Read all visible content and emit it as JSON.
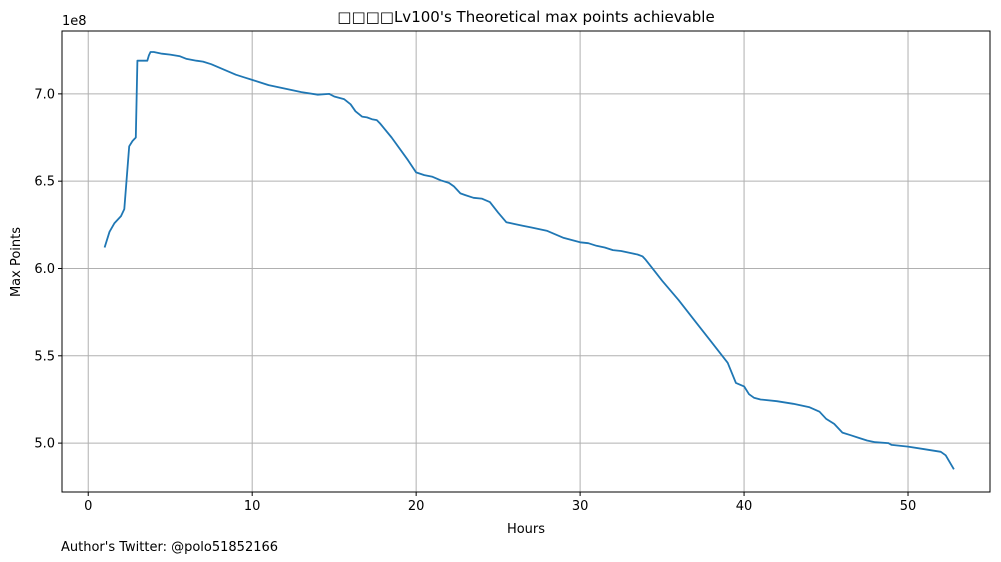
{
  "chart_data": {
    "type": "line",
    "title": "□□□□Lv100's Theoretical max points achievable",
    "xlabel": "Hours",
    "ylabel": "Max Points",
    "y_offset_label": "1e8",
    "y_scale": 100000000,
    "xlim": [
      -1.6,
      55.0
    ],
    "ylim": [
      4.72,
      7.36
    ],
    "x_ticks": [
      0,
      10,
      20,
      30,
      40,
      50
    ],
    "y_ticks": [
      5.0,
      5.5,
      6.0,
      6.5,
      7.0
    ],
    "y_tick_labels": [
      "5.0",
      "5.5",
      "6.0",
      "6.5",
      "7.0"
    ],
    "grid": true,
    "line_color": "#1f77b4",
    "series": [
      {
        "name": "Max Points",
        "x": [
          1.0,
          1.3,
          1.6,
          2.0,
          2.2,
          2.5,
          2.7,
          2.9,
          3.0,
          3.2,
          3.4,
          3.6,
          3.7,
          3.8,
          4.0,
          4.5,
          5.0,
          5.6,
          6.0,
          6.6,
          7.0,
          7.5,
          8.0,
          8.5,
          9.0,
          9.5,
          10.0,
          10.5,
          11.0,
          12.0,
          13.0,
          14.0,
          14.7,
          15.0,
          15.6,
          16.0,
          16.3,
          16.7,
          17.0,
          17.3,
          17.6,
          17.8,
          18.5,
          19.5,
          20.0,
          20.5,
          21.0,
          21.5,
          22.0,
          22.3,
          22.7,
          23.0,
          23.5,
          24.0,
          24.5,
          25.0,
          25.5,
          26.0,
          26.5,
          27.0,
          28.0,
          28.5,
          29.0,
          30.0,
          30.5,
          31.0,
          31.5,
          32.0,
          32.5,
          33.0,
          33.5,
          33.8,
          34.0,
          34.5,
          35.0,
          35.5,
          36.0,
          36.5,
          37.0,
          38.0,
          39.0,
          39.5,
          40.0,
          40.3,
          40.6,
          41.0,
          42.0,
          43.0,
          44.0,
          44.6,
          45.0,
          45.5,
          46.0,
          46.5,
          47.0,
          47.5,
          48.0,
          48.8,
          49.0,
          50.0,
          51.0,
          52.0,
          52.3,
          52.8
        ],
        "values": [
          6.12,
          6.21,
          6.26,
          6.3,
          6.34,
          6.7,
          6.73,
          6.75,
          7.19,
          7.19,
          7.19,
          7.19,
          7.22,
          7.24,
          7.24,
          7.23,
          7.225,
          7.215,
          7.2,
          7.19,
          7.185,
          7.17,
          7.15,
          7.13,
          7.11,
          7.095,
          7.08,
          7.065,
          7.05,
          7.03,
          7.01,
          6.995,
          7.0,
          6.985,
          6.97,
          6.94,
          6.9,
          6.87,
          6.865,
          6.855,
          6.85,
          6.83,
          6.75,
          6.62,
          6.55,
          6.535,
          6.525,
          6.505,
          6.49,
          6.47,
          6.43,
          6.42,
          6.405,
          6.4,
          6.38,
          6.32,
          6.265,
          6.255,
          6.245,
          6.235,
          6.215,
          6.195,
          6.175,
          6.15,
          6.145,
          6.13,
          6.12,
          6.105,
          6.1,
          6.09,
          6.08,
          6.07,
          6.05,
          5.99,
          5.93,
          5.875,
          5.82,
          5.76,
          5.7,
          5.58,
          5.46,
          5.345,
          5.325,
          5.28,
          5.26,
          5.25,
          5.24,
          5.225,
          5.205,
          5.18,
          5.14,
          5.11,
          5.06,
          5.045,
          5.03,
          5.015,
          5.005,
          5.0,
          4.99,
          4.98,
          4.965,
          4.95,
          4.93,
          4.85
        ]
      }
    ]
  },
  "footer": {
    "credit": "Author's Twitter: @polo51852166"
  }
}
